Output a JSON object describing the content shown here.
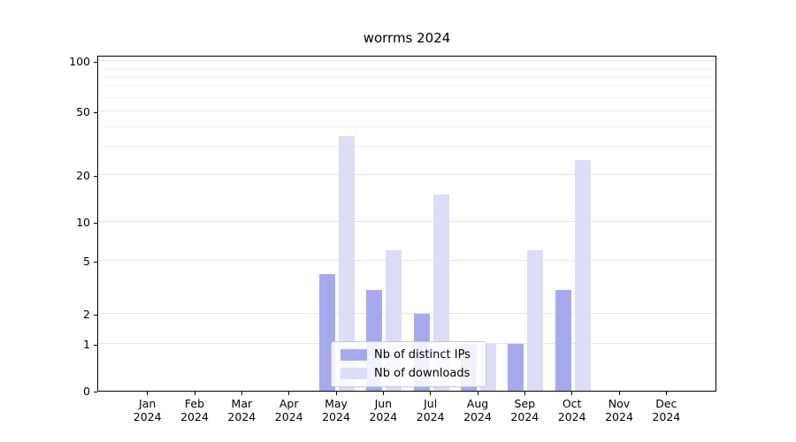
{
  "title": "worrms 2024",
  "chart_data": {
    "type": "bar",
    "title": "worrms 2024",
    "categories": [
      "Jan 2024",
      "Feb 2024",
      "Mar 2024",
      "Apr 2024",
      "May 2024",
      "Jun 2024",
      "Jul 2024",
      "Aug 2024",
      "Sep 2024",
      "Oct 2024",
      "Nov 2024",
      "Dec 2024"
    ],
    "series": [
      {
        "name": "Nb of distinct IPs",
        "color": "#a6aaec",
        "values": [
          0,
          0,
          0,
          0,
          4,
          3,
          2,
          1,
          1,
          3,
          0,
          0
        ]
      },
      {
        "name": "Nb of downloads",
        "color": "#dcddf7",
        "values": [
          0,
          0,
          0,
          0,
          35,
          6,
          15,
          1,
          6,
          25,
          0,
          0
        ]
      }
    ],
    "yticks": [
      0,
      1,
      2,
      5,
      10,
      20,
      50,
      100
    ],
    "y_minor_gridlines": [
      30,
      40,
      60,
      70,
      80,
      90
    ],
    "yscale": "log-like",
    "ylim": [
      0,
      110
    ],
    "xlabel": "",
    "ylabel": "",
    "grid": true,
    "legend_position": "lower center"
  },
  "legend": {
    "items": [
      {
        "label": "Nb of distinct IPs",
        "color": "#a6aaec"
      },
      {
        "label": "Nb of downloads",
        "color": "#dcddf7"
      }
    ]
  }
}
